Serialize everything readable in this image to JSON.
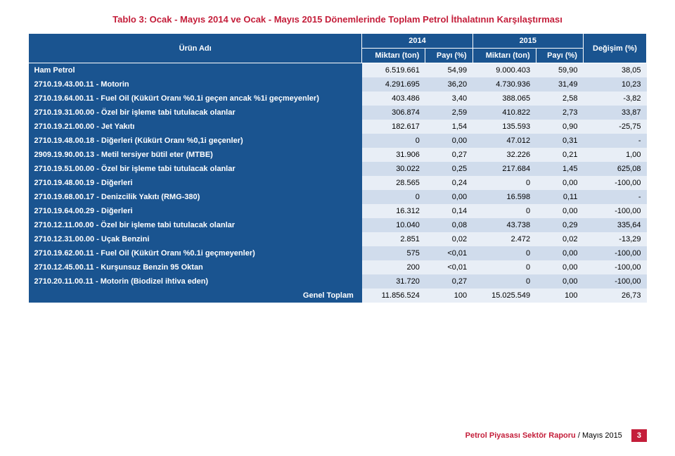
{
  "title": "Tablo 3: Ocak - Mayıs 2014 ve Ocak - Mayıs 2015 Dönemlerinde Toplam Petrol İthalatının Karşılaştırması",
  "headers": {
    "product": "Ürün Adı",
    "year1": "2014",
    "year2": "2015",
    "change": "Değişim (%)",
    "qty": "Miktarı (ton)",
    "share": "Payı (%)"
  },
  "columns": [
    "product",
    "qty1",
    "share1",
    "qty2",
    "share2",
    "change"
  ],
  "rows": [
    {
      "product": "Ham Petrol",
      "qty1": "6.519.661",
      "share1": "54,99",
      "qty2": "9.000.403",
      "share2": "59,90",
      "change": "38,05"
    },
    {
      "product": "2710.19.43.00.11 - Motorin",
      "qty1": "4.291.695",
      "share1": "36,20",
      "qty2": "4.730.936",
      "share2": "31,49",
      "change": "10,23"
    },
    {
      "product": "2710.19.64.00.11 - Fuel Oil (Kükürt Oranı %0.1i geçen ancak %1i geçmeyenler)",
      "qty1": "403.486",
      "share1": "3,40",
      "qty2": "388.065",
      "share2": "2,58",
      "change": "-3,82"
    },
    {
      "product": "2710.19.31.00.00 - Özel bir işleme tabi tutulacak olanlar",
      "qty1": "306.874",
      "share1": "2,59",
      "qty2": "410.822",
      "share2": "2,73",
      "change": "33,87"
    },
    {
      "product": "2710.19.21.00.00 - Jet Yakıtı",
      "qty1": "182.617",
      "share1": "1,54",
      "qty2": "135.593",
      "share2": "0,90",
      "change": "-25,75"
    },
    {
      "product": "2710.19.48.00.18 - Diğerleri (Kükürt Oranı %0,1i geçenler)",
      "qty1": "0",
      "share1": "0,00",
      "qty2": "47.012",
      "share2": "0,31",
      "change": "-"
    },
    {
      "product": "2909.19.90.00.13 - Metil tersiyer bütil eter (MTBE)",
      "qty1": "31.906",
      "share1": "0,27",
      "qty2": "32.226",
      "share2": "0,21",
      "change": "1,00"
    },
    {
      "product": "2710.19.51.00.00 - Özel bir işleme tabi tutulacak olanlar",
      "qty1": "30.022",
      "share1": "0,25",
      "qty2": "217.684",
      "share2": "1,45",
      "change": "625,08"
    },
    {
      "product": "2710.19.48.00.19 - Diğerleri",
      "qty1": "28.565",
      "share1": "0,24",
      "qty2": "0",
      "share2": "0,00",
      "change": "-100,00"
    },
    {
      "product": "2710.19.68.00.17 - Denizcilik Yakıtı (RMG-380)",
      "qty1": "0",
      "share1": "0,00",
      "qty2": "16.598",
      "share2": "0,11",
      "change": "-"
    },
    {
      "product": "2710.19.64.00.29 - Diğerleri",
      "qty1": "16.312",
      "share1": "0,14",
      "qty2": "0",
      "share2": "0,00",
      "change": "-100,00"
    },
    {
      "product": "2710.12.11.00.00 - Özel bir işleme tabi tutulacak olanlar",
      "qty1": "10.040",
      "share1": "0,08",
      "qty2": "43.738",
      "share2": "0,29",
      "change": "335,64"
    },
    {
      "product": "2710.12.31.00.00 - Uçak Benzini",
      "qty1": "2.851",
      "share1": "0,02",
      "qty2": "2.472",
      "share2": "0,02",
      "change": "-13,29"
    },
    {
      "product": "2710.19.62.00.11 - Fuel Oil (Kükürt Oranı %0.1i geçmeyenler)",
      "qty1": "575",
      "share1": "<0,01",
      "qty2": "0",
      "share2": "0,00",
      "change": "-100,00"
    },
    {
      "product": "2710.12.45.00.11 - Kurşunsuz Benzin 95 Oktan",
      "qty1": "200",
      "share1": "<0,01",
      "qty2": "0",
      "share2": "0,00",
      "change": "-100,00"
    },
    {
      "product": "2710.20.11.00.11 - Motorin (Biodizel ihtiva eden)",
      "qty1": "31.720",
      "share1": "0,27",
      "qty2": "0",
      "share2": "0,00",
      "change": "-100,00"
    }
  ],
  "total": {
    "label": "Genel Toplam",
    "qty1": "11.856.524",
    "share1": "100",
    "qty2": "15.025.549",
    "share2": "100",
    "change": "26,73"
  },
  "footer": {
    "sector": "Petrol Piyasası Sektör Raporu",
    "sep": " / ",
    "date": "Mayıs 2015",
    "page": "3"
  },
  "style": {
    "header_bg": "#1a5490",
    "header_fg": "#ffffff",
    "title_color": "#c41e3a",
    "row_alt_a": "#e8eef6",
    "row_alt_b": "#d0dcec",
    "page_bg": "#c41e3a",
    "font_size_body": 11,
    "font_size_title": 13
  }
}
